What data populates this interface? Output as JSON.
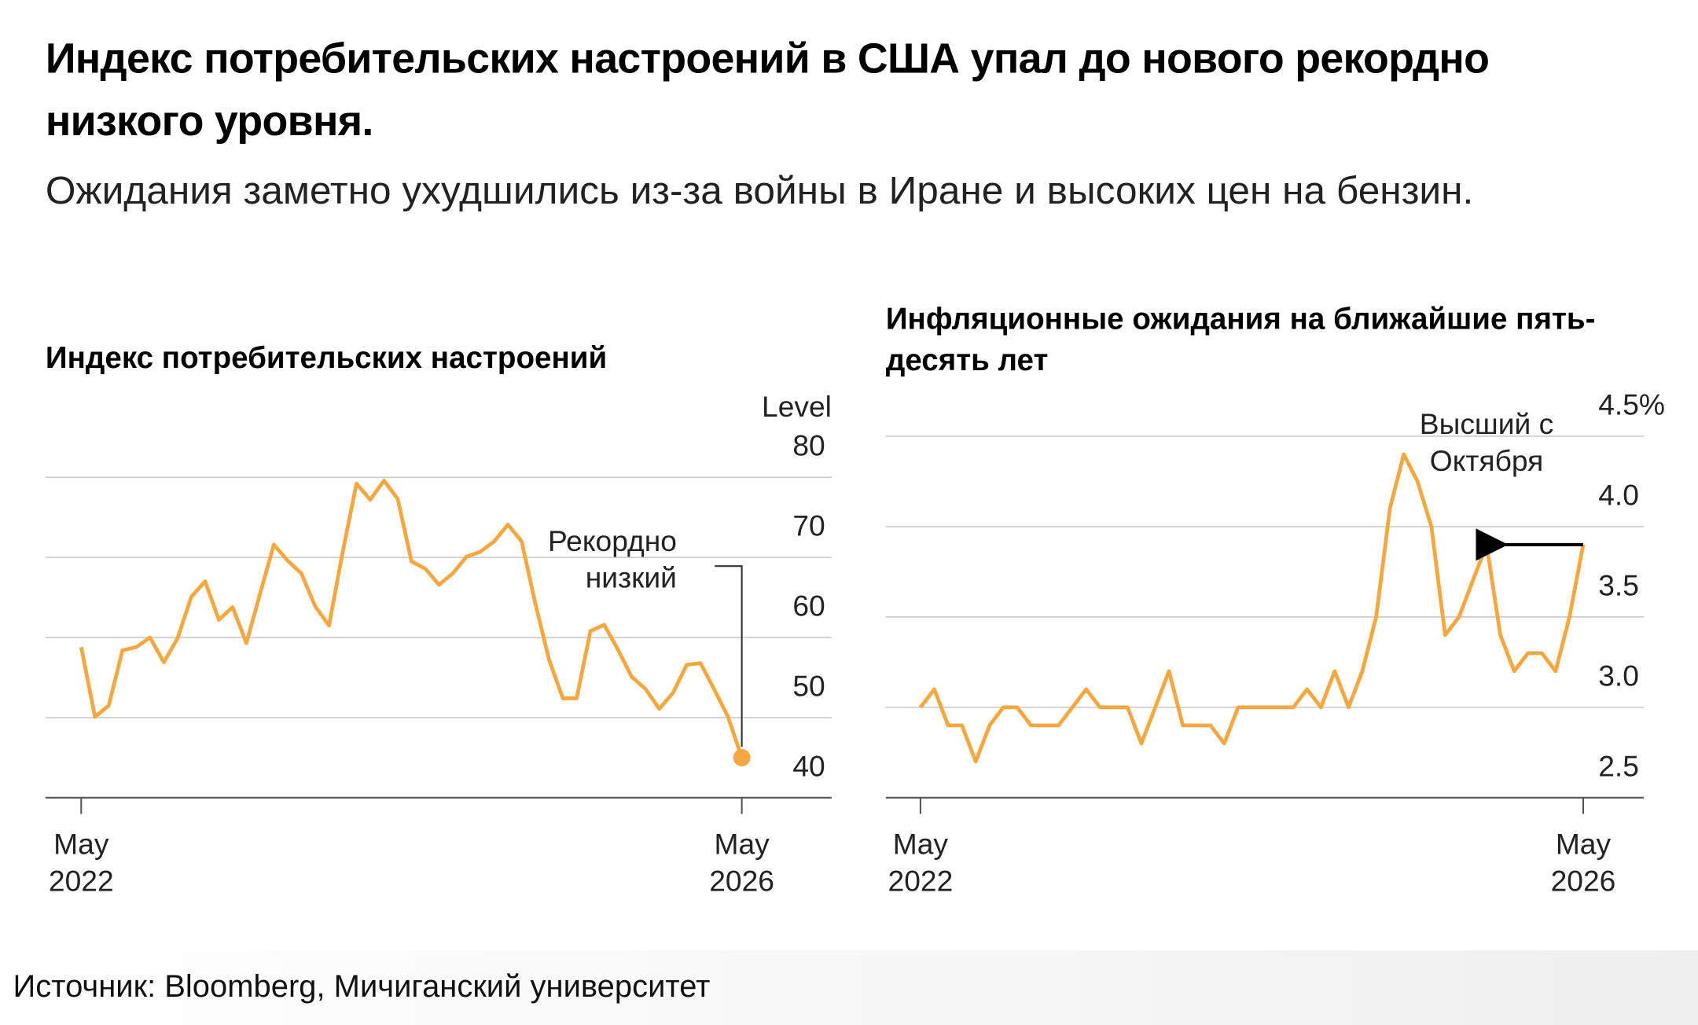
{
  "title": "Индекс потребительских настроений в США упал до нового рекордно низкого уровня.",
  "subtitle": "Ожидания заметно ухудшились из-за войны в Иране и высоких цен на бензин.",
  "source": "Источник: Bloomberg, Мичиганский университет",
  "chart_data": [
    {
      "type": "line",
      "title": "Индекс потребительских настроений",
      "y_label": "Level",
      "color": "#f5a742",
      "categories": [
        "May 2022",
        null,
        null,
        null,
        null,
        null,
        null,
        null,
        null,
        null,
        null,
        null,
        null,
        null,
        null,
        null,
        null,
        null,
        null,
        null,
        null,
        null,
        null,
        null,
        null,
        null,
        null,
        null,
        null,
        null,
        null,
        null,
        null,
        null,
        null,
        null,
        null,
        null,
        null,
        null,
        null,
        null,
        null,
        null,
        null,
        null,
        null,
        null,
        "May 2026"
      ],
      "values": [
        58.8,
        50.1,
        51.5,
        58.4,
        58.8,
        60.0,
        56.9,
        59.9,
        65.1,
        67.0,
        62.2,
        63.8,
        59.3,
        65.5,
        71.6,
        69.6,
        68.0,
        63.9,
        61.5,
        70.7,
        79.2,
        77.2,
        79.6,
        77.3,
        69.5,
        68.6,
        66.6,
        68.0,
        70.1,
        70.7,
        72.0,
        74.1,
        72.0,
        64.2,
        57.2,
        52.4,
        52.4,
        60.8,
        61.6,
        58.5,
        55.1,
        53.6,
        51.1,
        53.1,
        56.6,
        56.8,
        53.5,
        50.1,
        45.0
      ],
      "ylim": [
        40,
        80
      ],
      "yticks": [
        40,
        50,
        60,
        70,
        80
      ],
      "grid": true,
      "annotation": "Рекордно низкий"
    },
    {
      "type": "line",
      "title": "Инфляционные ожидания на ближайшие пять-десять лет",
      "color": "#f5a742",
      "categories": [
        "May 2022",
        null,
        null,
        null,
        null,
        null,
        null,
        null,
        null,
        null,
        null,
        null,
        null,
        null,
        null,
        null,
        null,
        null,
        null,
        null,
        null,
        null,
        null,
        null,
        null,
        null,
        null,
        null,
        null,
        null,
        null,
        null,
        null,
        null,
        null,
        null,
        null,
        null,
        null,
        null,
        null,
        null,
        null,
        null,
        null,
        null,
        null,
        null,
        "May 2026"
      ],
      "values": [
        3.0,
        3.1,
        2.9,
        2.9,
        2.7,
        2.9,
        3.0,
        3.0,
        2.9,
        2.9,
        2.9,
        3.0,
        3.1,
        3.0,
        3.0,
        3.0,
        2.8,
        3.0,
        3.2,
        2.9,
        2.9,
        2.9,
        2.8,
        3.0,
        3.0,
        3.0,
        3.0,
        3.0,
        3.1,
        3.0,
        3.2,
        3.0,
        3.2,
        3.5,
        4.1,
        4.4,
        4.25,
        4.0,
        3.4,
        3.5,
        3.7,
        3.9,
        3.4,
        3.2,
        3.3,
        3.3,
        3.2,
        3.5,
        3.9
      ],
      "ylim": [
        2.5,
        4.5
      ],
      "yticks": [
        {
          "value": 2.5,
          "label": "2.5"
        },
        {
          "value": 3,
          "label": "3.0"
        },
        {
          "value": 3.5,
          "label": "3.5"
        },
        {
          "value": 4,
          "label": "4.0"
        },
        {
          "value": 4.5,
          "label": "4.5%"
        }
      ],
      "grid": true,
      "annotation": "Высший с Октября"
    }
  ]
}
